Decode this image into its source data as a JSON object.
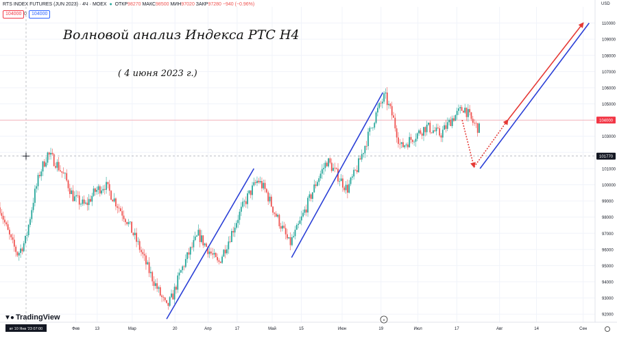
{
  "header": {
    "symbol": "RTS INDEX FUTURES (JUN 2023) · 4Ч · MOEX",
    "open_label": "ОТКР",
    "open_value": "98270",
    "high_label": "МАКС",
    "high_value": "98500",
    "low_label": "МИН",
    "low_value": "97020",
    "close_label": "ЗАКР",
    "close_value": "97280",
    "change": "−940 (−0.96%)",
    "pill_a": "104000",
    "pill_sep": "0",
    "pill_b": "104000"
  },
  "currency": "USD",
  "logo": "TradingView",
  "colors": {
    "up": "#26a69a",
    "down": "#ef5350",
    "wave_line": "#2a3fd6",
    "forecast": "#e53935",
    "price_line": "#f23645",
    "crosshair": "#9598a1"
  },
  "chart_data": {
    "type": "candlestick",
    "title": "Волновой анализ Индекса РТС Н4",
    "subtitle": "( 4 июня 2023 г.)",
    "y_ticks": [
      "110000",
      "109000",
      "108000",
      "107000",
      "106000",
      "105000",
      "104000",
      "103000",
      "102000",
      "101000",
      "100000",
      "99000",
      "98000",
      "97000",
      "96000",
      "95000",
      "94000",
      "93000",
      "92000"
    ],
    "x_ticks": [
      "Фев",
      "13",
      "Мар",
      "20",
      "Апр",
      "17",
      "Май",
      "15",
      "Июн",
      "19",
      "Июл",
      "17",
      "Авг",
      "14",
      "Сен"
    ],
    "crosshair_date": "вт 10 Янв '23  07:00",
    "crosshair_price": "101770",
    "price_line": "104000",
    "ylim": [
      91500,
      111000
    ],
    "price_path": [
      [
        0,
        98600
      ],
      [
        3,
        97400
      ],
      [
        6,
        96400
      ],
      [
        9,
        95700
      ],
      [
        13,
        96600
      ],
      [
        17,
        99200
      ],
      [
        20,
        100700
      ],
      [
        24,
        101900
      ],
      [
        28,
        101400
      ],
      [
        33,
        100400
      ],
      [
        37,
        99200
      ],
      [
        43,
        98700
      ],
      [
        48,
        99600
      ],
      [
        53,
        100000
      ],
      [
        58,
        99000
      ],
      [
        64,
        97800
      ],
      [
        70,
        96200
      ],
      [
        75,
        94700
      ],
      [
        80,
        93400
      ],
      [
        84,
        92400
      ],
      [
        87,
        93100
      ],
      [
        91,
        94600
      ],
      [
        95,
        95700
      ],
      [
        100,
        96900
      ],
      [
        105,
        96000
      ],
      [
        110,
        95100
      ],
      [
        115,
        96500
      ],
      [
        120,
        98000
      ],
      [
        125,
        99300
      ],
      [
        130,
        100300
      ],
      [
        134,
        99600
      ],
      [
        138,
        98400
      ],
      [
        142,
        97400
      ],
      [
        146,
        96300
      ],
      [
        150,
        97300
      ],
      [
        155,
        98800
      ],
      [
        160,
        100300
      ],
      [
        165,
        101500
      ],
      [
        170,
        100600
      ],
      [
        175,
        99700
      ],
      [
        180,
        101000
      ],
      [
        185,
        102800
      ],
      [
        190,
        104500
      ],
      [
        194,
        105500
      ],
      [
        198,
        104200
      ],
      [
        202,
        102300
      ],
      [
        208,
        102900
      ],
      [
        215,
        103600
      ],
      [
        222,
        103100
      ],
      [
        228,
        104100
      ],
      [
        234,
        104800
      ],
      [
        238,
        103900
      ],
      [
        242,
        103400
      ]
    ],
    "wave_lines": [
      {
        "from": [
          84,
          91700
        ],
        "to": [
          128,
          101000
        ]
      },
      {
        "from": [
          147,
          95500
        ],
        "to": [
          193,
          105700
        ]
      },
      {
        "from": [
          242,
          101000
        ],
        "to": [
          297,
          110000
        ]
      }
    ],
    "forecast_dashed": [
      {
        "from": [
          233,
          104000
        ],
        "to": [
          239,
          101100
        ]
      },
      {
        "from": [
          239,
          101100
        ],
        "to": [
          256,
          104000
        ]
      }
    ],
    "forecast_solid": {
      "from": [
        256,
        104000
      ],
      "to": [
        294,
        110000
      ]
    }
  }
}
